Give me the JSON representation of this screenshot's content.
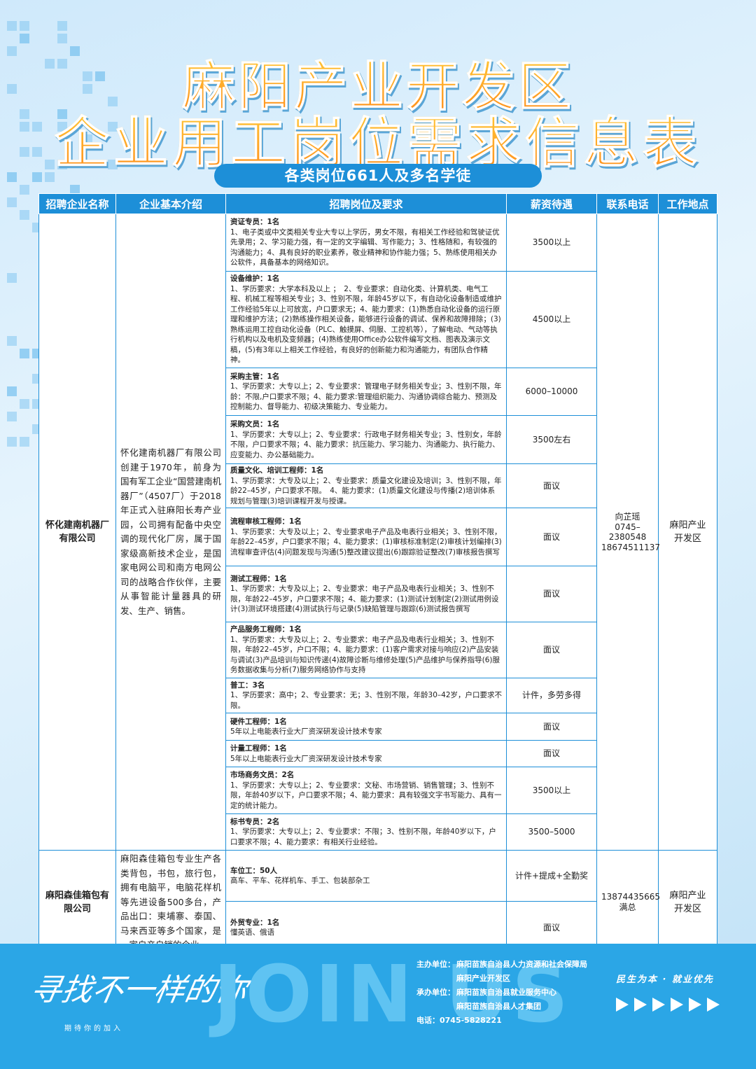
{
  "header": {
    "title_line1": "麻阳产业开发区",
    "title_line2": "企业用工岗位需求信息表",
    "subtitle": "各类岗位661人及多名学徒"
  },
  "table": {
    "headers": [
      "招聘企业名称",
      "企业基本介绍",
      "招聘岗位及要求",
      "薪资待遇",
      "联系电话",
      "工作地点"
    ],
    "companies": [
      {
        "name": "怀化建南机器厂有限公司",
        "intro": "怀化建南机器厂有限公司创建于1970年，前身为国有军工企业“国营建南机器厂”（4507厂）于2018年正式入驻麻阳长寿产业园，公司拥有配备中央空调的现代化厂房，属于国家级高新技术企业，是国家电网公司和南方电网公司的战略合作伙伴，主要从事智能计量器具的研发、生产、销售。",
        "contact": [
          "向芷瑶",
          "0745–2380548",
          "18674511137"
        ],
        "location": "麻阳产业开发区",
        "positions": [
          {
            "title": "资证专员：1名",
            "requirements": "1、电子类或中文类相关专业大专以上学历，男女不限，有相关工作经验和驾驶证优先录用；2、学习能力强，有一定的文字编辑、写作能力；3、性格随和，有较强的沟通能力；4、具有良好的职业素养，敬业精神和协作能力强；5、熟练使用相关办公软件，具备基本的网络知识。",
            "salary": "3500以上"
          },
          {
            "title": "设备维护：1名",
            "requirements": "1、学历要求：大学本科及以上 ；　2、专业要求：自动化类、计算机类、电气工程、机械工程等相关专业；3、性别不限，年龄45岁以下，有自动化设备制造或维护工作经验5年以上可放宽，户口要求无；4、能力要求：(1)熟悉自动化设备的运行原理和维护方法；(2)熟练操作相关设备，能够进行设备的调试、保养和故障排除；(3)熟练运用工控自动化设备（PLC、触摸屏、伺服、工控机等），了解电动、气动等执行机构以及电机及变频器；(4)熟练使用Office办公软件编写文档、图表及演示文稿，(5)有3年以上相关工作经验，有良好的创新能力和沟通能力，有团队合作精神。",
            "salary": "4500以上"
          },
          {
            "title": "采购主管：1名",
            "requirements": "1、学历要求：大专以上；2、专业要求：管理电子财务相关专业；3、性别不限，年龄：不限,户口要求不限；4、能力要求:管理组织能力、沟通协调综合能力、预测及控制能力、督导能力、初级决策能力、专业能力。",
            "salary": "6000–10000"
          },
          {
            "title": "采购文员：1名",
            "requirements": "1、学历要求：大专以上；2、专业要求：行政电子财务相关专业；3、性别女，年龄不限，户口要求不限；4、能力要求：抗压能力、学习能力、沟通能力、执行能力、应变能力、办公基础能力。",
            "salary": "3500左右"
          },
          {
            "title": "质量文化、培训工程师：1名",
            "requirements": "1、学历要求：大专及以上；2、专业要求：质量文化建设及培训；3、性别不限，年龄22–45岁，户口要求不限。　4、能力要求：(1)质量文化建设与传播(2)培训体系规划与管理(3)培训课程开发与授课。",
            "salary": "面议"
          },
          {
            "title": "流程审核工程师：1名",
            "requirements": "1、学历要求：大专及以上；2、专业要求电子产品及电表行业相关；3、性别不限，年龄22–45岁，户口要求不限；4、能力要求：(1)审核标准制定(2)审核计划编排(3)流程审查评估(4)问题发现与沟通(5)整改建议提出(6)跟踪验证整改(7)审核报告撰写",
            "salary": "面议"
          },
          {
            "title": "测试工程师：1名",
            "requirements": "1、学历要求：大专及以上；2、专业要求：电子产品及电表行业相关；3、性别不限，年龄22–45岁，户口要求不限；4、能力要求：(1)测试计划制定(2)测试用例设计(3)测试环境搭建(4)测试执行与记录(5)缺陷管理与跟踪(6)测试报告撰写",
            "salary": "面议"
          },
          {
            "title": "产品服务工程师：1名",
            "requirements": "1、学历要求：大专及以上；2、专业要求：电子产品及电表行业相关；3、性别不限，年龄22–45岁，户口不限；4、能力要求：(1)客户需求对接与响应(2)产品安装与调试(3)产品培训与知识传递(4)故障诊断与维修处理(5)产品维护与保养指导(6)服务数据收集与分析(7)服务网络协作与支持",
            "salary": "面议"
          },
          {
            "title": "普工：3名",
            "requirements": "1、学历要求：高中；2、专业要求：无；3、性别不限，年龄30–42岁，户口要求不限。",
            "salary": "计件，多劳多得"
          },
          {
            "title": "硬件工程师：1名",
            "requirements": "5年以上电能表行业大厂资深研发设计技术专家",
            "salary": "面议"
          },
          {
            "title": "计量工程师：1名",
            "requirements": "5年以上电能表行业大厂资深研发设计技术专家",
            "salary": "面议"
          },
          {
            "title": "市场商务文员：2名",
            "requirements": "1、学历要求：大专以上；2、专业要求：文秘、市场营销、销售管理；3、性别不限，年龄40岁以下，户口要求不限；4、能力要求：具有较强文字书写能力、具有一定的统计能力。",
            "salary": "3500以上"
          },
          {
            "title": "标书专员：2名",
            "requirements": "1、学历要求：大专以上；2、专业要求：不限；3、性别不限，年龄40岁以下，户口要求不限；4、能力要求：有相关行业经验。",
            "salary": "3500–5000"
          }
        ]
      },
      {
        "name": "麻阳森佳箱包有限公司",
        "intro": "麻阳森佳箱包专业生产各类背包，书包，旅行包，拥有电脑平，电脑花样机等先进设备500多台，产品出口：柬埔寨、泰国、马来西亚等多个国家，是一家自产自销的企业。",
        "contact": [
          "13874435665",
          "满总"
        ],
        "location": "麻阳产业开发区",
        "positions": [
          {
            "title": "车位工：50人",
            "requirements": "高车、平车、花样机车、手工、包装部杂工",
            "salary": "计件+提成+全勤奖"
          },
          {
            "title": "外贸专业：1名",
            "requirements": "懂英语、俄语",
            "salary": "面议"
          }
        ]
      }
    ]
  },
  "footer": {
    "slogan": "寻找不一样的你",
    "slogan_sub": "期待你的加入",
    "join": "JOIN US",
    "organizers": [
      {
        "label": "主办单位：",
        "value": "麻阳苗族自治县人力资源和社会保障局"
      },
      {
        "label": "",
        "value": "麻阳产业开发区"
      },
      {
        "label": "承办单位：",
        "value": "麻阳苗族自治县就业服务中心"
      },
      {
        "label": "",
        "value": "麻阳苗族自治县人才集团"
      },
      {
        "label": "电话：",
        "value": "0745-5828221"
      }
    ],
    "motto": "民生为本 · 就业优先"
  }
}
